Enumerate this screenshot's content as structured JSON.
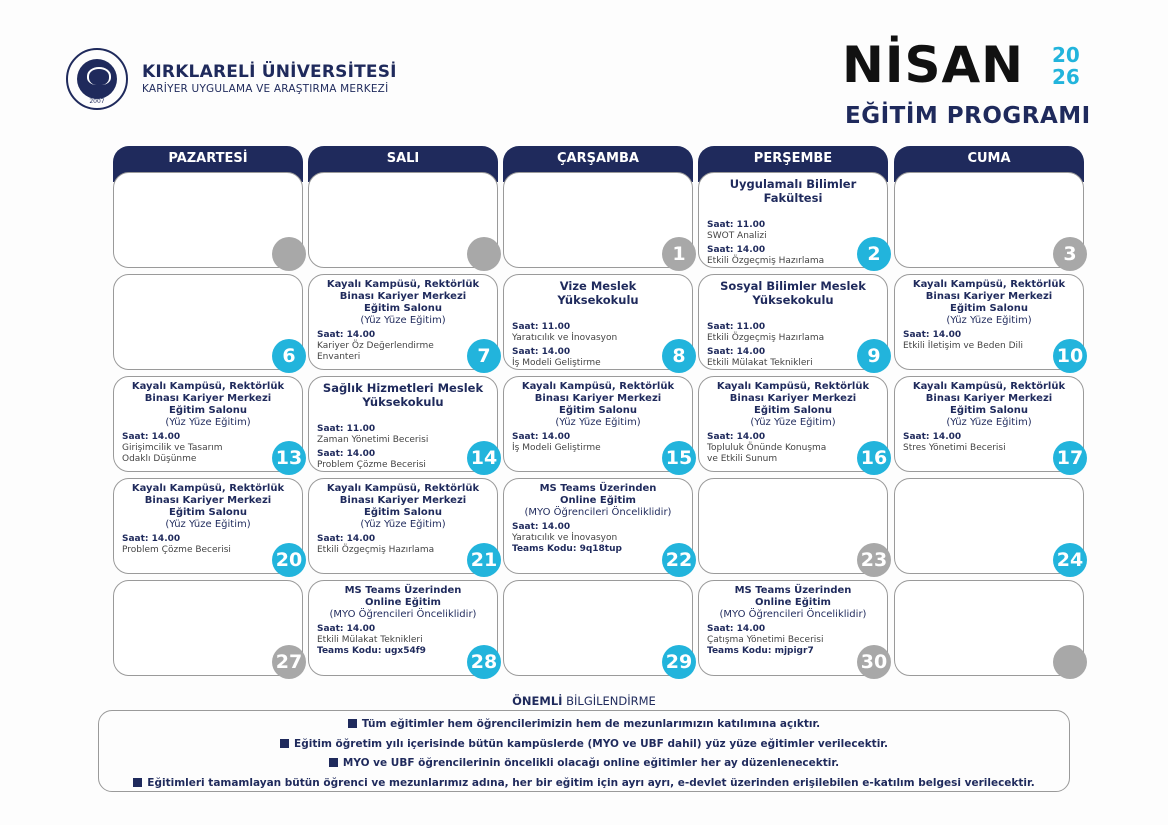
{
  "header": {
    "logo_year": "2007",
    "university": "KIRKLARELİ ÜNİVERSİTESİ",
    "center": "KARİYER UYGULAMA VE ARAŞTIRMA MERKEZİ",
    "month": "NİSAN",
    "year_top": "20",
    "year_bottom": "26",
    "program": "EĞİTİM PROGRAMI"
  },
  "colors": {
    "navy": "#1f2a5c",
    "active_day": "#22b4dc",
    "inactive_day": "#a8a8a8"
  },
  "weekdays": [
    "PAZARTESİ",
    "SALI",
    "ÇARŞAMBA",
    "PERŞEMBE",
    "CUMA"
  ],
  "cells": [
    {
      "day": "",
      "status": "inactive"
    },
    {
      "day": "",
      "status": "inactive"
    },
    {
      "day": "1",
      "status": "inactive"
    },
    {
      "day": "2",
      "status": "active",
      "title": "Uygulamalı Bilimler\nFakültesi",
      "sessions": [
        {
          "time": "Saat: 11.00",
          "topic": "SWOT Analizi"
        },
        {
          "time": "Saat: 14.00",
          "topic": "Etkili Özgeçmiş Hazırlama"
        }
      ]
    },
    {
      "day": "3",
      "status": "inactive"
    },
    {
      "day": "6",
      "status": "active"
    },
    {
      "day": "7",
      "status": "active",
      "title": "Kayalı Kampüsü, Rektörlük\nBinası Kariyer Merkezi\nEğitim Salonu",
      "subtitle": "(Yüz Yüze Eğitim)",
      "sessions": [
        {
          "time": "Saat: 14.00",
          "topic": "Kariyer Öz Değerlendirme\nEnvanteri"
        }
      ]
    },
    {
      "day": "8",
      "status": "active",
      "title": "Vize Meslek\nYüksekokulu",
      "sessions": [
        {
          "time": "Saat: 11.00",
          "topic": "Yaratıcılık ve İnovasyon"
        },
        {
          "time": "Saat: 14.00",
          "topic": "İş Modeli Geliştirme"
        }
      ]
    },
    {
      "day": "9",
      "status": "active",
      "title": "Sosyal Bilimler Meslek\nYüksekokulu",
      "sessions": [
        {
          "time": "Saat: 11.00",
          "topic": "Etkili Özgeçmiş Hazırlama"
        },
        {
          "time": "Saat: 14.00",
          "topic": "Etkili Mülakat Teknikleri"
        }
      ]
    },
    {
      "day": "10",
      "status": "active",
      "title": "Kayalı Kampüsü, Rektörlük\nBinası Kariyer Merkezi\nEğitim Salonu",
      "subtitle": "(Yüz Yüze Eğitim)",
      "sessions": [
        {
          "time": "Saat: 14.00",
          "topic": "Etkili İletişim ve Beden Dili"
        }
      ]
    },
    {
      "day": "13",
      "status": "active",
      "title": "Kayalı Kampüsü, Rektörlük\nBinası Kariyer Merkezi\nEğitim Salonu",
      "subtitle": "(Yüz Yüze Eğitim)",
      "sessions": [
        {
          "time": "Saat: 14.00",
          "topic": "Girişimcilik ve Tasarım\nOdaklı Düşünme"
        }
      ]
    },
    {
      "day": "14",
      "status": "active",
      "title": "Sağlık Hizmetleri Meslek\nYüksekokulu",
      "sessions": [
        {
          "time": "Saat: 11.00",
          "topic": "Zaman Yönetimi Becerisi"
        },
        {
          "time": "Saat: 14.00",
          "topic": "Problem Çözme Becerisi"
        }
      ]
    },
    {
      "day": "15",
      "status": "active",
      "title": "Kayalı Kampüsü, Rektörlük\nBinası Kariyer Merkezi\nEğitim Salonu",
      "subtitle": "(Yüz Yüze Eğitim)",
      "sessions": [
        {
          "time": "Saat: 14.00",
          "topic": "İş Modeli Geliştirme"
        }
      ]
    },
    {
      "day": "16",
      "status": "active",
      "title": "Kayalı Kampüsü, Rektörlük\nBinası Kariyer Merkezi\nEğitim Salonu",
      "subtitle": "(Yüz Yüze Eğitim)",
      "sessions": [
        {
          "time": "Saat: 14.00",
          "topic": "Topluluk Önünde Konuşma\nve Etkili Sunum"
        }
      ]
    },
    {
      "day": "17",
      "status": "active",
      "title": "Kayalı Kampüsü, Rektörlük\nBinası Kariyer Merkezi\nEğitim Salonu",
      "subtitle": "(Yüz Yüze Eğitim)",
      "sessions": [
        {
          "time": "Saat: 14.00",
          "topic": "Stres Yönetimi Becerisi"
        }
      ]
    },
    {
      "day": "20",
      "status": "active",
      "title": "Kayalı Kampüsü, Rektörlük\nBinası Kariyer Merkezi\nEğitim Salonu",
      "subtitle": "(Yüz Yüze Eğitim)",
      "sessions": [
        {
          "time": "Saat: 14.00",
          "topic": "Problem Çözme Becerisi"
        }
      ]
    },
    {
      "day": "21",
      "status": "active",
      "title": "Kayalı Kampüsü, Rektörlük\nBinası Kariyer Merkezi\nEğitim Salonu",
      "subtitle": "(Yüz Yüze Eğitim)",
      "sessions": [
        {
          "time": "Saat: 14.00",
          "topic": "Etkili Özgeçmiş Hazırlama"
        }
      ]
    },
    {
      "day": "22",
      "status": "active",
      "title": "MS Teams Üzerinden\nOnline Eğitim",
      "subtitle": "(MYO Öğrencileri Önceliklidir)",
      "sessions": [
        {
          "time": "Saat: 14.00",
          "topic": "Yaratıcılık ve İnovasyon"
        }
      ],
      "code": "Teams Kodu: 9q18tup"
    },
    {
      "day": "23",
      "status": "inactive"
    },
    {
      "day": "24",
      "status": "active"
    },
    {
      "day": "27",
      "status": "inactive"
    },
    {
      "day": "28",
      "status": "active",
      "title": "MS Teams Üzerinden\nOnline Eğitim",
      "subtitle": "(MYO Öğrencileri Önceliklidir)",
      "sessions": [
        {
          "time": "Saat: 14.00",
          "topic": "Etkili Mülakat Teknikleri"
        }
      ],
      "code": "Teams Kodu: ugx54f9"
    },
    {
      "day": "29",
      "status": "active"
    },
    {
      "day": "30",
      "status": "inactive",
      "title": "MS Teams Üzerinden\nOnline Eğitim",
      "subtitle": "(MYO Öğrencileri Önceliklidir)",
      "sessions": [
        {
          "time": "Saat: 14.00",
          "topic": "Çatışma Yönetimi Becerisi"
        }
      ],
      "code": "Teams Kodu: mjpigr7"
    },
    {
      "day": "",
      "status": "inactive"
    }
  ],
  "info": {
    "title_bold": "ÖNEMLİ",
    "title_rest": "BİLGİLENDİRME",
    "lines": [
      "Tüm eğitimler hem öğrencilerimizin hem de mezunlarımızın katılımına açıktır.",
      "Eğitim öğretim yılı içerisinde bütün kampüslerde (MYO ve UBF dahil) yüz yüze eğitimler verilecektir.",
      "MYO ve UBF öğrencilerinin öncelikli olacağı online eğitimler her ay düzenlenecektir.",
      "Eğitimleri tamamlayan bütün öğrenci ve mezunlarımız adına, her bir eğitim için ayrı ayrı, e-devlet üzerinden erişilebilen e-katılım belgesi verilecektir."
    ]
  }
}
